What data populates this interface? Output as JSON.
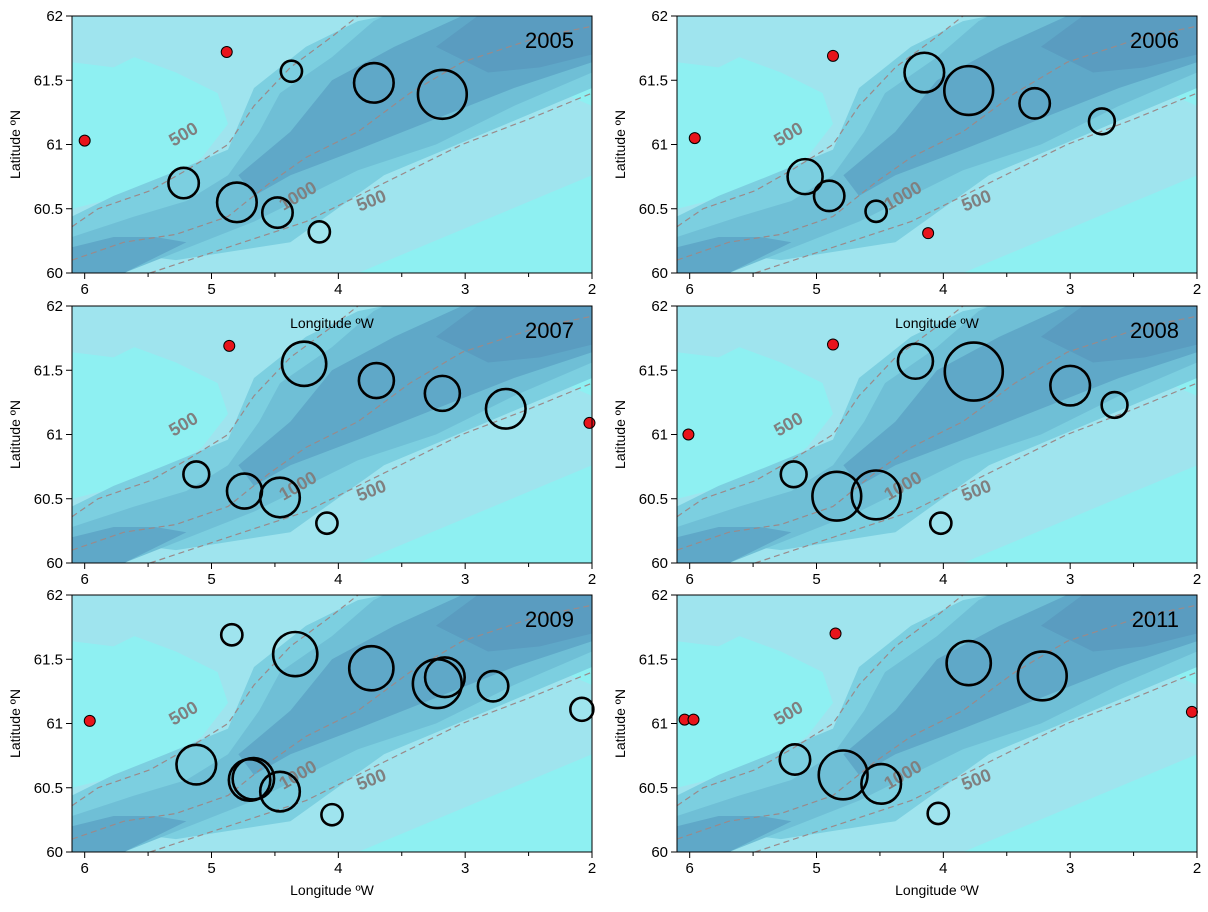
{
  "colors": {
    "bg_shallow": "#8ef0f2",
    "shelf": "#9fe4ee",
    "mid": "#7ccfe0",
    "slope": "#6fbfd6",
    "deep": "#5fa8c8",
    "deepest": "#5a9cc0",
    "marker_red": "#e8141b",
    "contour_line": "#9a8a8a",
    "contour_text": "#808080"
  },
  "axis_text": {
    "x_ticks": [
      "6",
      "5",
      "4",
      "3",
      "2"
    ],
    "y_ticks": [
      "60",
      "60.5",
      "61",
      "61.5",
      "62"
    ],
    "xlabel": "Longitude ºW",
    "ylabel": "Latitude ºN"
  },
  "contour_labels": [
    "500",
    "1000",
    "500"
  ],
  "chart_data": [
    {
      "type": "scatter",
      "year": "2005",
      "xlim": [
        6.1,
        2.0
      ],
      "ylim": [
        60,
        62
      ],
      "xlabel": "",
      "ylabel": "Latitude ºN",
      "red_points": [
        [
          6.0,
          61.03
        ],
        [
          4.88,
          61.72
        ]
      ],
      "circles": [
        [
          4.37,
          61.57,
          1
        ],
        [
          3.72,
          61.48,
          3
        ],
        [
          3.18,
          61.39,
          4
        ],
        [
          5.22,
          60.7,
          2
        ],
        [
          4.8,
          60.55,
          3
        ],
        [
          4.48,
          60.47,
          2
        ],
        [
          4.15,
          60.32,
          1
        ]
      ]
    },
    {
      "type": "scatter",
      "year": "2006",
      "xlim": [
        6.1,
        2.0
      ],
      "ylim": [
        60,
        62
      ],
      "xlabel": "Longitude ºW",
      "ylabel": "Latitude ºN",
      "red_points": [
        [
          5.96,
          61.05
        ],
        [
          4.87,
          61.69
        ],
        [
          4.12,
          60.31
        ]
      ],
      "circles": [
        [
          4.15,
          61.56,
          3
        ],
        [
          3.8,
          61.42,
          4
        ],
        [
          3.28,
          61.32,
          2
        ],
        [
          2.75,
          61.18,
          1.5
        ],
        [
          5.09,
          60.75,
          2.5
        ],
        [
          4.9,
          60.6,
          2
        ],
        [
          4.53,
          60.48,
          1
        ]
      ]
    },
    {
      "type": "scatter",
      "year": "2007",
      "xlim": [
        6.1,
        2.0
      ],
      "ylim": [
        60,
        62
      ],
      "xlabel": "",
      "ylabel": "Latitude ºN",
      "red_points": [
        [
          4.86,
          61.69
        ],
        [
          2.02,
          61.09
        ]
      ],
      "circles": [
        [
          4.27,
          61.55,
          3.5
        ],
        [
          3.7,
          61.42,
          2.5
        ],
        [
          3.18,
          61.32,
          2.5
        ],
        [
          2.68,
          61.2,
          3
        ],
        [
          5.12,
          60.69,
          1.5
        ],
        [
          4.74,
          60.56,
          2.5
        ],
        [
          4.46,
          60.51,
          3
        ],
        [
          4.09,
          60.31,
          1
        ]
      ]
    },
    {
      "type": "scatter",
      "year": "2008",
      "xlim": [
        6.1,
        2.0
      ],
      "ylim": [
        60,
        62
      ],
      "xlabel": "Longitude ºW",
      "ylabel": "Latitude ºN",
      "red_points": [
        [
          6.01,
          61.0
        ],
        [
          4.87,
          61.7
        ]
      ],
      "circles": [
        [
          4.22,
          61.57,
          2.5
        ],
        [
          3.76,
          61.49,
          5
        ],
        [
          3.0,
          61.38,
          3
        ],
        [
          2.65,
          61.23,
          1.5
        ],
        [
          5.18,
          60.69,
          1.5
        ],
        [
          4.84,
          60.52,
          4
        ],
        [
          4.53,
          60.53,
          4
        ],
        [
          4.02,
          60.31,
          1
        ]
      ]
    },
    {
      "type": "scatter",
      "year": "2009",
      "xlim": [
        6.1,
        2.0
      ],
      "ylim": [
        60,
        62
      ],
      "xlabel": "Longitude ºW",
      "ylabel": "Latitude ºN",
      "red_points": [
        [
          5.96,
          61.02
        ]
      ],
      "circles": [
        [
          4.84,
          61.69,
          1
        ],
        [
          4.34,
          61.54,
          3.5
        ],
        [
          3.74,
          61.43,
          3.5
        ],
        [
          3.22,
          61.31,
          4
        ],
        [
          3.16,
          61.36,
          3
        ],
        [
          2.78,
          61.29,
          2
        ],
        [
          2.08,
          61.11,
          1.2
        ],
        [
          5.12,
          60.68,
          3
        ],
        [
          4.7,
          60.56,
          3.2
        ],
        [
          4.67,
          60.57,
          3.2
        ],
        [
          4.46,
          60.47,
          3
        ],
        [
          4.05,
          60.29,
          1
        ]
      ]
    },
    {
      "type": "scatter",
      "year": "2011",
      "xlim": [
        6.1,
        2.0
      ],
      "ylim": [
        60,
        62
      ],
      "xlabel": "Longitude ºW",
      "ylabel": "Latitude ºN",
      "red_points": [
        [
          6.04,
          61.03
        ],
        [
          5.97,
          61.03
        ],
        [
          4.85,
          61.7
        ],
        [
          2.04,
          61.09
        ]
      ],
      "circles": [
        [
          3.8,
          61.47,
          3.5
        ],
        [
          3.22,
          61.37,
          4
        ],
        [
          5.17,
          60.72,
          2
        ],
        [
          4.79,
          60.6,
          4
        ],
        [
          4.49,
          60.53,
          3
        ],
        [
          4.04,
          60.3,
          1
        ]
      ]
    }
  ]
}
